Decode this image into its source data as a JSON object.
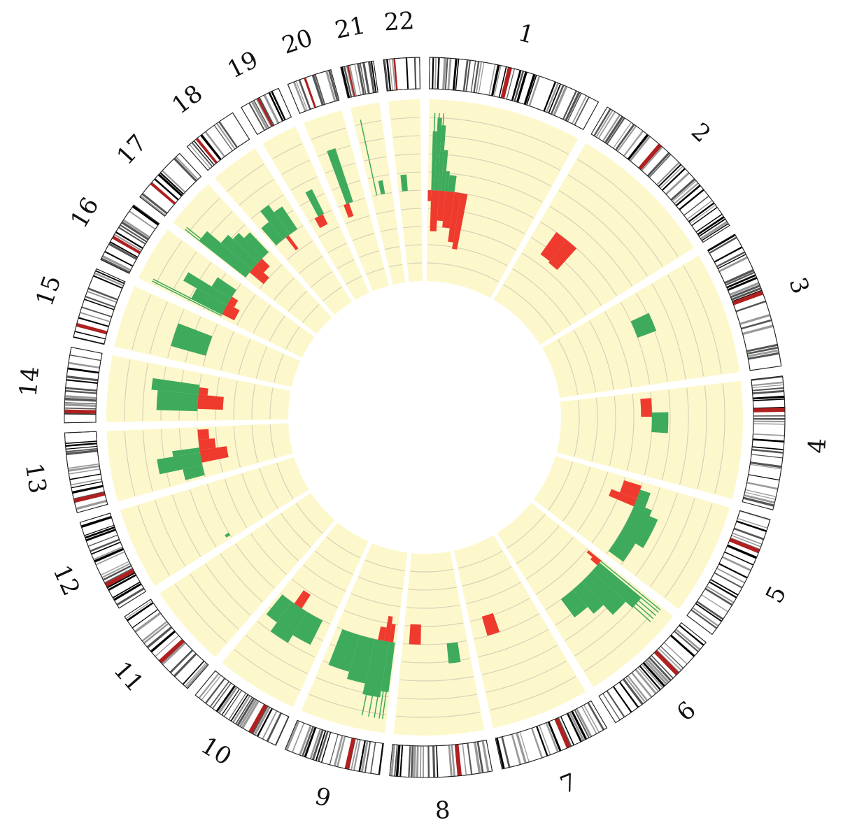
{
  "chromosomes": [
    {
      "label": "1",
      "size": 248,
      "cent": 0.46,
      "dels": [
        [
          0.0,
          0.03,
          0.12
        ],
        [
          0.03,
          0.1,
          0.45
        ],
        [
          0.1,
          0.16,
          0.33
        ],
        [
          0.16,
          0.24,
          0.4
        ],
        [
          0.24,
          0.3,
          0.55
        ],
        [
          0.3,
          0.36,
          0.62
        ]
      ],
      "gains": [
        [
          0.03,
          0.06,
          0.65
        ],
        [
          0.06,
          0.09,
          0.8
        ],
        [
          0.09,
          0.12,
          0.72
        ],
        [
          0.12,
          0.15,
          0.45
        ],
        [
          0.15,
          0.18,
          0.22
        ],
        [
          0.18,
          0.24,
          0.18
        ]
      ],
      "gainLines": [
        0.04,
        0.07,
        0.1
      ]
    },
    {
      "label": "2",
      "size": 242,
      "cent": 0.38,
      "dels": [
        [
          0.18,
          0.3,
          0.3
        ],
        [
          0.3,
          0.42,
          0.32
        ]
      ],
      "gains": [],
      "gainLines": []
    },
    {
      "label": "3",
      "size": 198,
      "cent": 0.46,
      "dels": [],
      "gains": [
        [
          0.25,
          0.45,
          0.22
        ]
      ],
      "gainLines": []
    },
    {
      "label": "4",
      "size": 190,
      "cent": 0.25,
      "dels": [
        [
          0.08,
          0.3,
          0.12
        ]
      ],
      "gains": [
        [
          0.25,
          0.48,
          0.18
        ]
      ],
      "gainLines": []
    },
    {
      "label": "5",
      "size": 182,
      "cent": 0.26,
      "dels": [
        [
          0.05,
          0.22,
          0.2
        ],
        [
          0.22,
          0.32,
          0.3
        ]
      ],
      "gains": [
        [
          0.1,
          0.3,
          0.12
        ],
        [
          0.28,
          0.36,
          0.2
        ],
        [
          0.35,
          0.7,
          0.3
        ],
        [
          0.65,
          0.95,
          0.2
        ]
      ],
      "gainLines": []
    },
    {
      "label": "6",
      "size": 171,
      "cent": 0.35,
      "dels": [
        [
          0.02,
          0.06,
          0.18
        ],
        [
          0.02,
          0.1,
          0.1
        ]
      ],
      "gains": [
        [
          0.06,
          0.2,
          0.6
        ],
        [
          0.2,
          0.4,
          0.5
        ],
        [
          0.4,
          0.55,
          0.35
        ],
        [
          0.55,
          0.75,
          0.25
        ]
      ],
      "gainLines": [
        0.03,
        0.06,
        0.1,
        0.14,
        0.18
      ]
    },
    {
      "label": "7",
      "size": 159,
      "cent": 0.38,
      "dels": [
        [
          0.62,
          0.8,
          0.22
        ]
      ],
      "gains": [],
      "gainLines": []
    },
    {
      "label": "8",
      "size": 145,
      "cent": 0.32,
      "dels": [
        [
          0.72,
          0.9,
          0.22
        ]
      ],
      "gains": [
        [
          0.15,
          0.32,
          0.22
        ]
      ],
      "gainLines": []
    },
    {
      "label": "9",
      "size": 138,
      "cent": 0.34,
      "dels": [
        [
          0.05,
          0.12,
          0.2
        ],
        [
          0.12,
          0.2,
          0.28
        ],
        [
          0.2,
          0.3,
          0.15
        ]
      ],
      "gains": [
        [
          0.02,
          0.12,
          0.55
        ],
        [
          0.12,
          0.35,
          0.62
        ],
        [
          0.35,
          0.6,
          0.5
        ],
        [
          0.6,
          0.9,
          0.42
        ]
      ],
      "gainLines": [
        0.05,
        0.09,
        0.15,
        0.22,
        0.3
      ]
    },
    {
      "label": "10",
      "size": 134,
      "cent": 0.3,
      "dels": [
        [
          0.55,
          0.7,
          0.18
        ]
      ],
      "gains": [
        [
          0.15,
          0.45,
          0.3
        ],
        [
          0.45,
          0.75,
          0.4
        ],
        [
          0.75,
          0.95,
          0.28
        ]
      ],
      "gainLines": []
    },
    {
      "label": "11",
      "size": 135,
      "cent": 0.4,
      "dels": [],
      "gains": [],
      "gainLines": []
    },
    {
      "label": "12",
      "size": 133,
      "cent": 0.28,
      "dels": [],
      "gains": [
        [
          0.05,
          0.1,
          0.05
        ]
      ],
      "gainLines": []
    },
    {
      "label": "13",
      "size": 114,
      "cent": 0.15,
      "dels": [
        [
          0.3,
          0.55,
          0.3
        ],
        [
          0.55,
          0.75,
          0.18
        ],
        [
          0.75,
          0.95,
          0.12
        ]
      ],
      "gains": [
        [
          0.05,
          0.25,
          0.22
        ],
        [
          0.25,
          0.5,
          0.48
        ],
        [
          0.5,
          0.6,
          0.3
        ]
      ],
      "gainLines": []
    },
    {
      "label": "14",
      "size": 107,
      "cent": 0.15,
      "dels": [
        [
          0.25,
          0.55,
          0.28
        ],
        [
          0.55,
          0.7,
          0.1
        ]
      ],
      "gains": [
        [
          0.2,
          0.55,
          0.45
        ],
        [
          0.55,
          0.75,
          0.52
        ]
      ],
      "gainLines": []
    },
    {
      "label": "15",
      "size": 102,
      "cent": 0.18,
      "dels": [],
      "gains": [
        [
          0.25,
          0.7,
          0.4
        ]
      ],
      "gainLines": []
    },
    {
      "label": "16",
      "size": 90,
      "cent": 0.4,
      "dels": [
        [
          0.1,
          0.4,
          0.15
        ],
        [
          0.4,
          0.6,
          0.08
        ]
      ],
      "gains": [
        [
          0.1,
          0.35,
          0.38
        ],
        [
          0.35,
          0.55,
          0.55
        ],
        [
          0.55,
          0.8,
          0.25
        ]
      ],
      "gainLines": [
        0.06,
        0.1
      ]
    },
    {
      "label": "17",
      "size": 83,
      "cent": 0.3,
      "dels": [
        [
          0.2,
          0.45,
          0.2
        ],
        [
          0.45,
          0.7,
          0.12
        ]
      ],
      "gains": [
        [
          0.05,
          0.3,
          0.65
        ],
        [
          0.3,
          0.55,
          0.45
        ],
        [
          0.55,
          0.75,
          0.38
        ],
        [
          0.75,
          0.95,
          0.3
        ]
      ],
      "gainLines": [
        0.04,
        0.09
      ]
    },
    {
      "label": "18",
      "size": 80,
      "cent": 0.22,
      "dels": [
        [
          0.4,
          0.5,
          0.18
        ]
      ],
      "gains": [
        [
          0.05,
          0.3,
          0.25
        ],
        [
          0.3,
          0.55,
          0.4
        ],
        [
          0.55,
          0.8,
          0.3
        ]
      ],
      "gainLines": []
    },
    {
      "label": "19",
      "size": 59,
      "cent": 0.45,
      "dels": [
        [
          0.25,
          0.6,
          0.12
        ]
      ],
      "gains": [
        [
          0.4,
          0.65,
          0.3
        ]
      ],
      "gainLines": []
    },
    {
      "label": "20",
      "size": 64,
      "cent": 0.4,
      "dels": [
        [
          0.2,
          0.4,
          0.15
        ]
      ],
      "gains": [
        [
          0.3,
          0.55,
          0.62
        ]
      ],
      "gainLines": []
    },
    {
      "label": "21",
      "size": 47,
      "cent": 0.22,
      "dels": [],
      "gains": [
        [
          0.45,
          0.65,
          0.15
        ]
      ],
      "gainLines": [
        0.25
      ]
    },
    {
      "label": "22",
      "size": 51,
      "cent": 0.3,
      "dels": [],
      "gains": [
        [
          0.15,
          0.4,
          0.18
        ]
      ],
      "gainLines": []
    }
  ],
  "colors": {
    "track_bg": "#fdf8cc",
    "track_line": "#d9d0b8",
    "gain": "#3eaa5c",
    "loss": "#ee3b2e",
    "band_dark": "#000000",
    "centromere": "#b02020",
    "acrocentric": "#5a78a8"
  }
}
